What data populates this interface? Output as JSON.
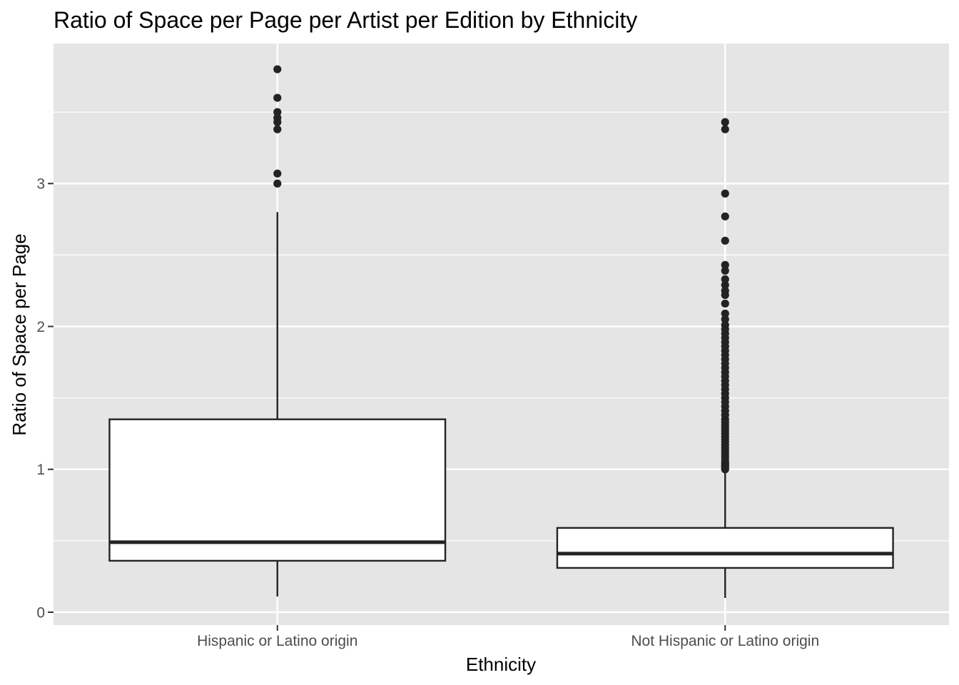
{
  "chart_data": {
    "type": "boxplot",
    "title": "Ratio of Space per Page per Artist per Edition by Ethnicity",
    "xlabel": "Ethnicity",
    "ylabel": "Ratio of Space per Page",
    "ylim": [
      -0.09,
      3.98
    ],
    "yticks": [
      0,
      1,
      2,
      3
    ],
    "yminor": [
      0.5,
      1.5,
      2.5,
      3.5
    ],
    "grid": true,
    "legend": "none",
    "colors": {
      "panel": "#e5e5e5",
      "grid": "#ffffff",
      "box_fill": "#ffffff",
      "line": "#232323",
      "point": "#232323",
      "tick_text": "#4d4d4d",
      "tick_mark": "#333333"
    },
    "categories": [
      "Hispanic or Latino origin",
      "Not Hispanic or Latino origin"
    ],
    "boxes": [
      {
        "category": "Hispanic or Latino origin",
        "whisker_low": 0.11,
        "q1": 0.36,
        "median": 0.49,
        "q3": 1.35,
        "whisker_high": 2.8,
        "outliers": [
          3.0,
          3.07,
          3.38,
          3.43,
          3.46,
          3.5,
          3.6,
          3.8
        ]
      },
      {
        "category": "Not Hispanic or Latino origin",
        "whisker_low": 0.1,
        "q1": 0.31,
        "median": 0.41,
        "q3": 0.59,
        "whisker_high": 1.0,
        "outliers": [
          1.0,
          1.01,
          1.02,
          1.03,
          1.04,
          1.05,
          1.07,
          1.09,
          1.11,
          1.13,
          1.15,
          1.17,
          1.19,
          1.21,
          1.23,
          1.25,
          1.27,
          1.29,
          1.31,
          1.33,
          1.35,
          1.38,
          1.41,
          1.44,
          1.47,
          1.5,
          1.53,
          1.56,
          1.59,
          1.62,
          1.65,
          1.68,
          1.71,
          1.74,
          1.77,
          1.8,
          1.83,
          1.86,
          1.89,
          1.92,
          1.95,
          1.98,
          2.01,
          2.05,
          2.09,
          2.16,
          2.22,
          2.25,
          2.29,
          2.33,
          2.39,
          2.43,
          2.6,
          2.77,
          2.93,
          3.38,
          3.43
        ]
      }
    ]
  }
}
